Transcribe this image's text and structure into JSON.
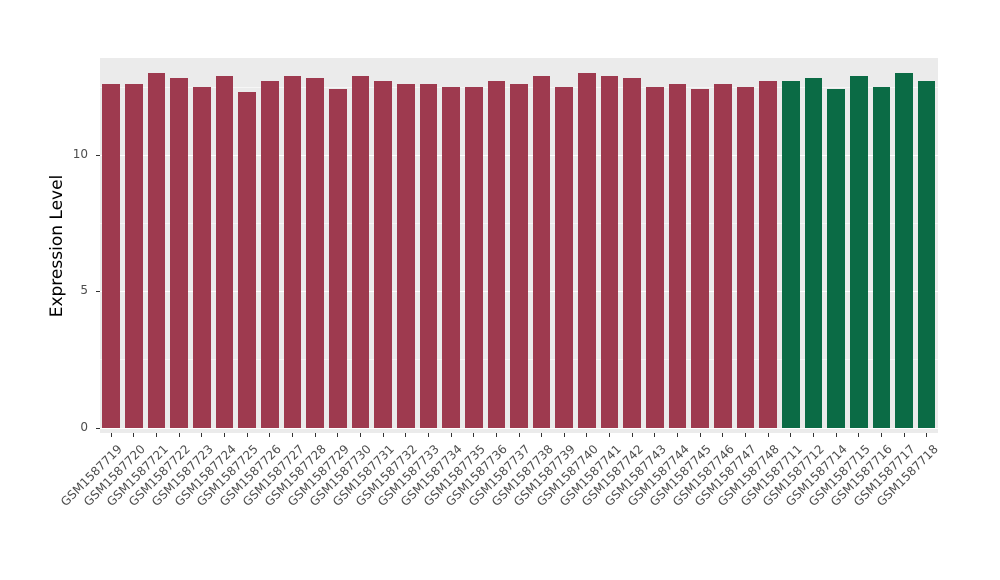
{
  "chart_data": {
    "type": "bar",
    "title": "",
    "ylabel": "Expression Level",
    "xlabel": "",
    "ylim": [
      -0.2,
      13.55
    ],
    "yticks": [
      0,
      5,
      10
    ],
    "yticks_minor": [
      2.5,
      7.5,
      12.5
    ],
    "grid": "on",
    "legend_position": "none",
    "panel_bg": "#EBEBEB",
    "grid_color": "#FFFFFF",
    "palette": {
      "maroon": "#9E3A4F",
      "green": "#0B6B45"
    },
    "categories": [
      "GSM1587719",
      "GSM1587720",
      "GSM1587721",
      "GSM1587722",
      "GSM1587723",
      "GSM1587724",
      "GSM1587725",
      "GSM1587726",
      "GSM1587727",
      "GSM1587728",
      "GSM1587729",
      "GSM1587730",
      "GSM1587731",
      "GSM1587732",
      "GSM1587733",
      "GSM1587734",
      "GSM1587735",
      "GSM1587736",
      "GSM1587737",
      "GSM1587738",
      "GSM1587739",
      "GSM1587740",
      "GSM1587741",
      "GSM1587742",
      "GSM1587743",
      "GSM1587744",
      "GSM1587745",
      "GSM1587746",
      "GSM1587747",
      "GSM1587748",
      "GSM1587711",
      "GSM1587712",
      "GSM1587714",
      "GSM1587715",
      "GSM1587716",
      "GSM1587717",
      "GSM1587718"
    ],
    "groups": [
      "maroon",
      "maroon",
      "maroon",
      "maroon",
      "maroon",
      "maroon",
      "maroon",
      "maroon",
      "maroon",
      "maroon",
      "maroon",
      "maroon",
      "maroon",
      "maroon",
      "maroon",
      "maroon",
      "maroon",
      "maroon",
      "maroon",
      "maroon",
      "maroon",
      "maroon",
      "maroon",
      "maroon",
      "maroon",
      "maroon",
      "maroon",
      "maroon",
      "maroon",
      "maroon",
      "green",
      "green",
      "green",
      "green",
      "green",
      "green",
      "green"
    ],
    "values": [
      12.6,
      12.6,
      13.0,
      12.8,
      12.5,
      12.9,
      12.3,
      12.7,
      12.9,
      12.8,
      12.4,
      12.9,
      12.7,
      12.6,
      12.6,
      12.5,
      12.5,
      12.7,
      12.6,
      12.9,
      12.5,
      13.0,
      12.9,
      12.8,
      12.5,
      12.6,
      12.4,
      12.6,
      12.5,
      12.7,
      12.7,
      12.8,
      12.4,
      12.9,
      12.5,
      13.0,
      12.7
    ]
  }
}
